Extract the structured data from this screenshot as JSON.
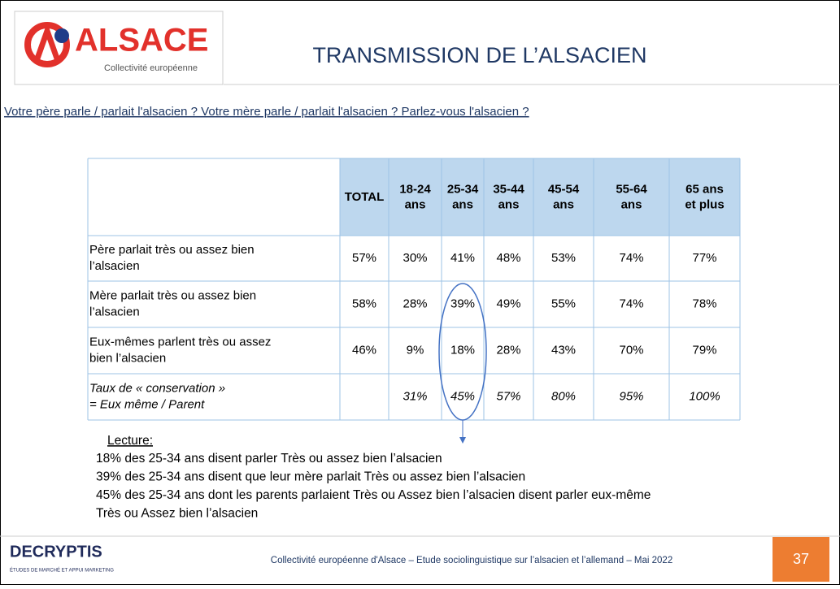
{
  "header": {
    "logo": {
      "name": "ALSACE",
      "subtitle": "Collectivité européenne"
    },
    "title": "TRANSMISSION DE L’ALSACIEN"
  },
  "question": "Votre père parle / parlait l'alsacien ? Votre mère parle / parlait l'alsacien ? Parlez-vous l'alsacien ?",
  "table": {
    "columns": [
      [
        "TOTAL"
      ],
      [
        "18-24",
        "ans"
      ],
      [
        "25-34",
        "ans"
      ],
      [
        "35-44",
        "ans"
      ],
      [
        "45-54",
        "ans"
      ],
      [
        "55-64",
        "ans"
      ],
      [
        "65 ans",
        "et plus"
      ]
    ],
    "rows": [
      {
        "label": [
          "Père parlait très ou assez bien",
          "l’alsacien"
        ],
        "values": [
          "57%",
          "30%",
          "41%",
          "48%",
          "53%",
          "74%",
          "77%"
        ]
      },
      {
        "label": [
          "Mère parlait très ou assez bien",
          "l’alsacien"
        ],
        "values": [
          "58%",
          "28%",
          "39%",
          "49%",
          "55%",
          "74%",
          "78%"
        ]
      },
      {
        "label": [
          "Eux-mêmes parlent très ou assez",
          "bien l’alsacien"
        ],
        "values": [
          "46%",
          "9%",
          "18%",
          "28%",
          "43%",
          "70%",
          "79%"
        ]
      },
      {
        "label": [
          "Taux de « conservation »",
          "= Eux même / Parent"
        ],
        "values": [
          null,
          "31%",
          "45%",
          "57%",
          "80%",
          "95%",
          "100%"
        ]
      }
    ]
  },
  "lecture": {
    "title": "Lecture:",
    "lines": [
      "18% des 25-34 ans disent parler Très ou assez bien l’alsacien",
      "39% des 25-34 ans disent que leur mère parlait Très ou assez bien l’alsacien",
      "45% des 25-34 ans dont les parents parlaient Très ou Assez bien l’alsacien disent parler eux-même",
      "Très ou Assez bien l’alsacien"
    ]
  },
  "footer": {
    "logo": "DECRYPTIS",
    "tagline": "ÉTUDES DE MARCHÉ ET APPUI MARKETING",
    "text": "Collectivité européenne d'Alsace – Etude sociolinguistique sur l’alsacien et l’allemand – Mai 2022",
    "page": "37"
  }
}
